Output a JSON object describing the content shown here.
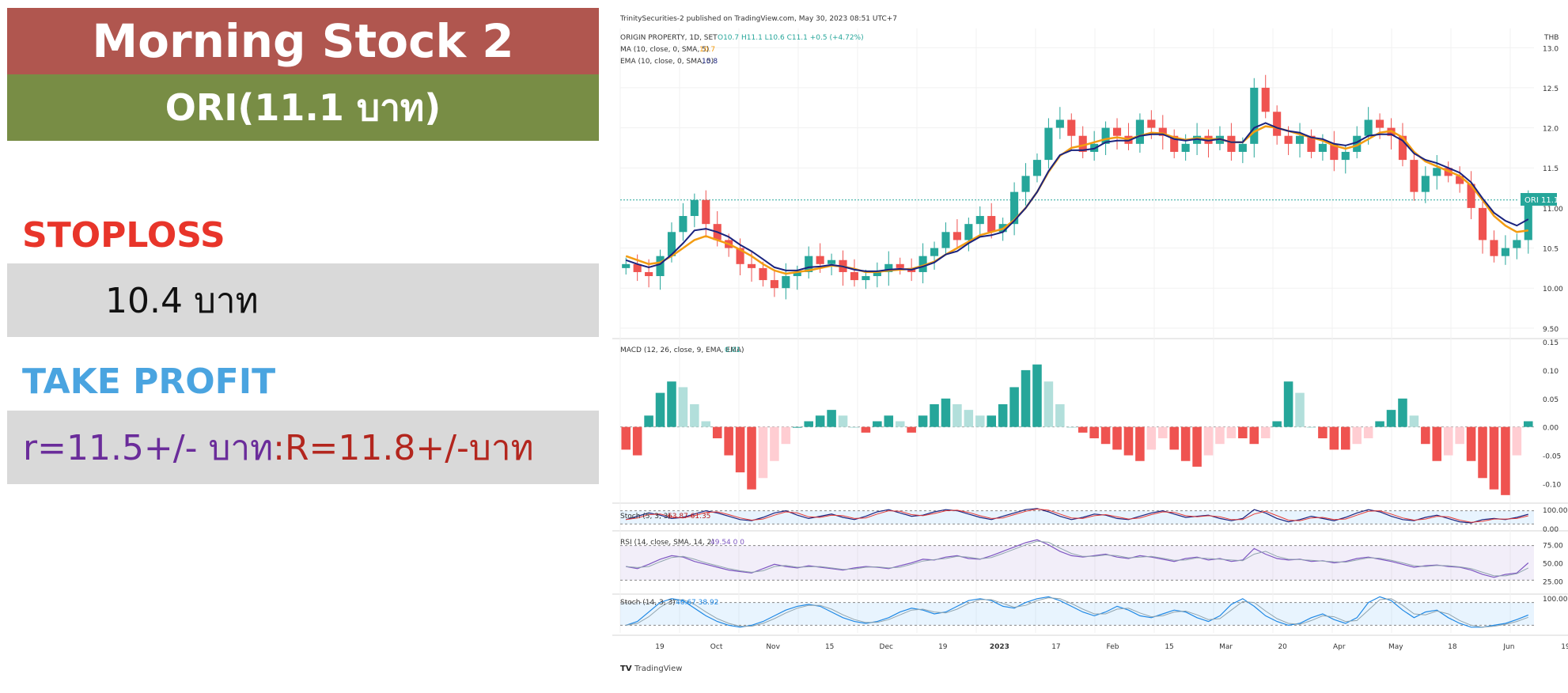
{
  "card": {
    "title": "Morning Stock 2",
    "subtitle": "ORI(11.1 บาท)",
    "stoploss_label": "STOPLOSS",
    "stoploss_value": "10.4 บาท",
    "takeprofit_label": "TAKE PROFIT",
    "takeprofit_r": "r=11.5+/- บาท",
    "takeprofit_R": ":R=11.8+/-บาท"
  },
  "colors": {
    "title_bg": "#b0564f",
    "subtitle_bg": "#788d45",
    "stoploss": "#e8352a",
    "takeprofit": "#4aa4e0",
    "r_text": "#6a2c9a",
    "R_text": "#b3261e",
    "up": "#26a69a",
    "down": "#ef5350",
    "ma": "#f39c12",
    "ema": "#1a237e"
  },
  "tradingview": {
    "publish_line": "TrinitySecurities-2 published on TradingView.com, May 30, 2023 08:51 UTC+7",
    "watermark": "TradingView",
    "currency": "THB",
    "price_badge": "ORI",
    "price_badge_value": "11.1"
  },
  "chart_data": [
    {
      "type": "candlestick",
      "legend": {
        "symbol_line": "ORIGIN PROPERTY, 1D, SET",
        "ohlc": "O10.7  H11.1  L10.6  C11.1  +0.5 (+4.72%)",
        "ma_line": "MA (10, close, 0, SMA, 5)",
        "ma_value": "10.7",
        "ema_line": "EMA (10, close, 0, SMA, 5)",
        "ema_value": "10.8"
      },
      "yticks": [
        "13.0",
        "12.5",
        "12.0",
        "11.5",
        "11.00",
        "10.5",
        "10.00",
        "9.50"
      ],
      "ylim": [
        9.4,
        13.2
      ],
      "last_price": 11.1,
      "price_path": [
        10.3,
        10.2,
        10.15,
        10.4,
        10.7,
        10.9,
        11.1,
        10.8,
        10.6,
        10.5,
        10.3,
        10.25,
        10.1,
        10.0,
        10.15,
        10.2,
        10.4,
        10.3,
        10.35,
        10.2,
        10.1,
        10.15,
        10.2,
        10.3,
        10.25,
        10.2,
        10.4,
        10.5,
        10.7,
        10.6,
        10.8,
        10.9,
        10.7,
        10.8,
        11.2,
        11.4,
        11.6,
        12.0,
        12.1,
        11.9,
        11.7,
        11.8,
        12.0,
        11.9,
        11.8,
        12.1,
        12.0,
        11.9,
        11.7,
        11.8,
        11.9,
        11.8,
        11.9,
        11.7,
        11.8,
        12.5,
        12.2,
        11.9,
        11.8,
        11.9,
        11.7,
        11.8,
        11.6,
        11.7,
        11.9,
        12.1,
        12.0,
        11.9,
        11.6,
        11.2,
        11.4,
        11.5,
        11.4,
        11.3,
        11.0,
        10.6,
        10.4,
        10.5,
        10.6,
        11.1
      ],
      "ma_series": [
        10.4,
        10.35,
        10.3,
        10.32,
        10.4,
        10.5,
        10.6,
        10.65,
        10.6,
        10.55,
        10.48,
        10.4,
        10.3,
        10.22,
        10.18,
        10.2,
        10.22,
        10.25,
        10.28,
        10.27,
        10.24,
        10.2,
        10.2,
        10.22,
        10.23,
        10.24,
        10.28,
        10.33,
        10.42,
        10.5,
        10.58,
        10.66,
        10.7,
        10.74,
        10.85,
        11.0,
        11.2,
        11.45,
        11.65,
        11.75,
        11.78,
        11.82,
        11.86,
        11.88,
        11.86,
        11.9,
        11.94,
        11.93,
        11.88,
        11.85,
        11.87,
        11.86,
        11.86,
        11.82,
        11.82,
        11.95,
        12.02,
        12.0,
        11.96,
        11.92,
        11.88,
        11.84,
        11.78,
        11.74,
        11.78,
        11.86,
        11.94,
        11.96,
        11.88,
        11.7,
        11.58,
        11.52,
        11.46,
        11.4,
        11.28,
        11.1,
        10.9,
        10.78,
        10.7,
        10.72
      ],
      "ema_series": [
        10.35,
        10.3,
        10.26,
        10.3,
        10.42,
        10.56,
        10.72,
        10.74,
        10.7,
        10.64,
        10.54,
        10.46,
        10.36,
        10.26,
        10.22,
        10.22,
        10.26,
        10.27,
        10.29,
        10.27,
        10.23,
        10.21,
        10.21,
        10.23,
        10.24,
        10.23,
        10.27,
        10.32,
        10.42,
        10.46,
        10.56,
        10.64,
        10.66,
        10.7,
        10.84,
        11.0,
        11.2,
        11.46,
        11.66,
        11.72,
        11.72,
        11.74,
        11.82,
        11.84,
        11.84,
        11.9,
        11.92,
        11.92,
        11.86,
        11.84,
        11.86,
        11.84,
        11.86,
        11.82,
        11.82,
        12.0,
        12.06,
        12.0,
        11.96,
        11.94,
        11.88,
        11.86,
        11.8,
        11.78,
        11.82,
        11.9,
        11.92,
        11.92,
        11.84,
        11.68,
        11.6,
        11.56,
        11.5,
        11.44,
        11.32,
        11.12,
        10.94,
        10.84,
        10.78,
        10.86
      ]
    },
    {
      "type": "bar",
      "name": "MACD",
      "legend": "MACD (12, 26, close, 9, EMA, EMA)",
      "legend_value": "0.01",
      "yticks": [
        "0.15",
        "0.10",
        "0.05",
        "0.00",
        "-0.05",
        "-0.10"
      ],
      "ylim": [
        -0.13,
        0.15
      ],
      "values": [
        -0.04,
        -0.05,
        0.02,
        0.06,
        0.08,
        0.07,
        0.04,
        0.01,
        -0.02,
        -0.05,
        -0.08,
        -0.11,
        -0.09,
        -0.06,
        -0.03,
        0.0,
        0.01,
        0.02,
        0.03,
        0.02,
        0.0,
        -0.01,
        0.01,
        0.02,
        0.01,
        -0.01,
        0.02,
        0.04,
        0.05,
        0.04,
        0.03,
        0.02,
        0.02,
        0.04,
        0.07,
        0.1,
        0.11,
        0.08,
        0.04,
        0.0,
        -0.01,
        -0.02,
        -0.03,
        -0.04,
        -0.05,
        -0.06,
        -0.04,
        -0.02,
        -0.04,
        -0.06,
        -0.07,
        -0.05,
        -0.03,
        -0.02,
        -0.02,
        -0.03,
        -0.02,
        0.01,
        0.08,
        0.06,
        0.0,
        -0.02,
        -0.04,
        -0.04,
        -0.03,
        -0.02,
        0.01,
        0.03,
        0.05,
        0.02,
        -0.03,
        -0.06,
        -0.05,
        -0.03,
        -0.06,
        -0.09,
        -0.11,
        -0.12,
        -0.05,
        0.01
      ]
    },
    {
      "type": "line",
      "name": "Stoch",
      "legend": "Stoch (5, 3, 3)",
      "legend_values": "63.87  61.35",
      "yticks": [
        "100.00",
        "0.00"
      ],
      "ylim": [
        0,
        100
      ],
      "values": [
        40,
        55,
        70,
        60,
        45,
        50,
        65,
        80,
        70,
        55,
        40,
        35,
        50,
        70,
        80,
        60,
        45,
        55,
        65,
        50,
        40,
        55,
        75,
        85,
        70,
        55,
        60,
        75,
        85,
        80,
        65,
        50,
        40,
        55,
        70,
        85,
        90,
        75,
        55,
        40,
        50,
        65,
        60,
        45,
        40,
        55,
        70,
        80,
        65,
        50,
        55,
        60,
        45,
        35,
        45,
        85,
        70,
        45,
        30,
        40,
        55,
        45,
        35,
        50,
        70,
        85,
        75,
        55,
        40,
        35,
        50,
        60,
        45,
        30,
        25,
        40,
        45,
        40,
        50,
        64
      ]
    },
    {
      "type": "line",
      "name": "RSI",
      "legend": "RSI (14, close, SMA, 14, 2)",
      "legend_values": "49.54  0  0",
      "yticks": [
        "75.00",
        "50.00",
        "25.00"
      ],
      "ylim": [
        10,
        90
      ],
      "values": [
        45,
        42,
        48,
        55,
        60,
        58,
        52,
        48,
        44,
        40,
        38,
        36,
        42,
        48,
        45,
        43,
        46,
        44,
        42,
        40,
        43,
        45,
        44,
        42,
        46,
        50,
        55,
        54,
        58,
        60,
        56,
        55,
        60,
        66,
        72,
        78,
        82,
        75,
        66,
        60,
        58,
        60,
        62,
        58,
        56,
        60,
        58,
        55,
        52,
        56,
        58,
        54,
        56,
        52,
        54,
        70,
        62,
        56,
        54,
        55,
        52,
        53,
        50,
        52,
        56,
        58,
        55,
        52,
        48,
        44,
        46,
        47,
        45,
        44,
        40,
        34,
        30,
        34,
        36,
        50
      ]
    },
    {
      "type": "line",
      "name": "Stoch",
      "legend": "Stoch (14, 3, 3)",
      "legend_values": "46.67  38.92",
      "yticks": [
        "100.00"
      ],
      "ylim": [
        0,
        100
      ],
      "values": [
        20,
        30,
        55,
        80,
        90,
        85,
        65,
        45,
        30,
        20,
        15,
        20,
        30,
        45,
        60,
        70,
        75,
        70,
        55,
        40,
        30,
        25,
        30,
        40,
        55,
        65,
        60,
        50,
        55,
        70,
        85,
        90,
        85,
        70,
        65,
        80,
        90,
        95,
        85,
        70,
        55,
        45,
        55,
        70,
        60,
        45,
        40,
        50,
        60,
        55,
        40,
        30,
        45,
        75,
        90,
        70,
        45,
        30,
        20,
        25,
        40,
        50,
        35,
        25,
        40,
        80,
        95,
        85,
        60,
        40,
        55,
        60,
        40,
        25,
        15,
        15,
        20,
        25,
        35,
        47
      ]
    }
  ],
  "x_axis": {
    "ticks": [
      "19",
      "Oct",
      "Nov",
      "15",
      "Dec",
      "19",
      "2023",
      "17",
      "Feb",
      "15",
      "Mar",
      "20",
      "Apr",
      "May",
      "18",
      "Jun",
      "19"
    ]
  }
}
